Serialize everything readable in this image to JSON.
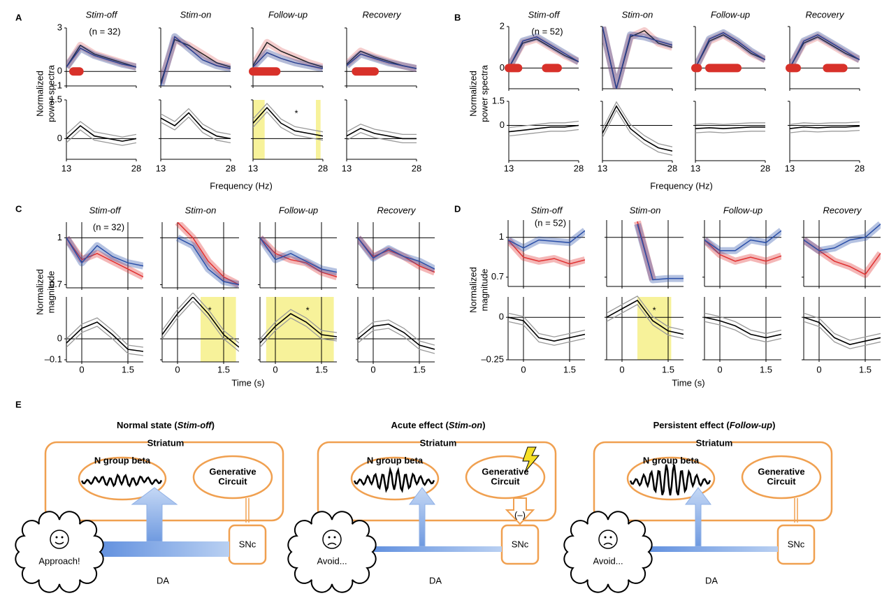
{
  "panels": [
    {
      "letter": "A",
      "columns": [
        "Stim-off",
        "Stim-on",
        "Follow-up",
        "Recovery"
      ],
      "n_label": "(n = 32)",
      "y_label": [
        "Normalized",
        "power spectra"
      ],
      "x_label": "Frequency (Hz)",
      "x": [
        13,
        16,
        19,
        22,
        25,
        28
      ],
      "xlim": [
        13,
        28
      ],
      "xticks": [
        13,
        28
      ],
      "xgrid": false,
      "top": {
        "ylim": [
          -1,
          3
        ],
        "yticks": [
          {
            "value": -1,
            "label": "−1"
          },
          0,
          3
        ],
        "ref": 0
      },
      "bottom": {
        "ylim": [
          -0.8,
          1.5
        ],
        "yticks": [
          0,
          1.5
        ],
        "ref": 0
      },
      "plots": [
        {
          "top": [
            {
              "color": "#e07070",
              "values": [
                0.3,
                1.8,
                1.2,
                0.9,
                0.6,
                0.3
              ]
            },
            {
              "color": "#2a3f8f",
              "values": [
                0.3,
                1.6,
                1.1,
                0.8,
                0.5,
                0.3
              ]
            }
          ],
          "sig": [
            [
              14.5,
              15.8
            ]
          ],
          "bottom": [
            0,
            0.5,
            0.1,
            0,
            -0.1,
            0
          ]
        },
        {
          "top": [
            {
              "color": "#e07070",
              "values": [
                -0.8,
                2.2,
                1.8,
                1.2,
                0.6,
                0.3
              ]
            },
            {
              "color": "#2a3f8f",
              "values": [
                -1,
                2.4,
                1.6,
                0.8,
                0.4,
                0.2
              ]
            }
          ],
          "sig": [],
          "bottom": [
            0.8,
            0.5,
            1.0,
            0.4,
            0.1,
            0
          ]
        },
        {
          "top": [
            {
              "color": "#e07070",
              "values": [
                0.4,
                2.0,
                1.4,
                1.0,
                0.6,
                0.3
              ]
            },
            {
              "color": "#2a3f8f",
              "values": [
                0.3,
                1.3,
                0.9,
                0.6,
                0.4,
                0.2
              ]
            }
          ],
          "sig": [
            [
              13,
              18
            ]
          ],
          "bottom": [
            0.6,
            1.2,
            0.6,
            0.3,
            0.2,
            0.1
          ],
          "highlight": [
            [
              13,
              15.5
            ],
            [
              26.5,
              27.5
            ]
          ],
          "star": "*"
        },
        {
          "top": [
            {
              "color": "#e07070",
              "values": [
                0.5,
                1.4,
                1.0,
                0.7,
                0.4,
                0.2
              ]
            },
            {
              "color": "#2a3f8f",
              "values": [
                0.4,
                1.2,
                0.9,
                0.6,
                0.4,
                0.2
              ]
            }
          ],
          "sig": [
            [
              15,
              19
            ]
          ],
          "bottom": [
            0.1,
            0.4,
            0.2,
            0.1,
            0,
            0
          ]
        }
      ]
    },
    {
      "letter": "B",
      "columns": [
        "Stim-off",
        "Stim-on",
        "Follow-up",
        "Recovery"
      ],
      "n_label": "(n = 52)",
      "y_label": [
        "Normalized",
        "power spectra"
      ],
      "x_label": "Frequency (Hz)",
      "x": [
        13,
        16,
        19,
        22,
        25,
        28
      ],
      "xlim": [
        13,
        28
      ],
      "xticks": [
        13,
        28
      ],
      "xgrid": false,
      "top": {
        "ylim": [
          -1,
          2
        ],
        "yticks": [
          0,
          2
        ],
        "ref": 0
      },
      "bottom": {
        "ylim": [
          -2.2,
          1.5
        ],
        "yticks": [
          0,
          1.5
        ],
        "ref": 0
      },
      "plots": [
        {
          "top": [
            {
              "color": "#e07070",
              "values": [
                0,
                1.2,
                1.4,
                1.0,
                0.6,
                0.3
              ]
            },
            {
              "color": "#2a3f8f",
              "values": [
                0,
                1.3,
                1.5,
                1.1,
                0.7,
                0.3
              ]
            }
          ],
          "sig": [
            [
              13,
              15
            ],
            [
              21,
              23.5
            ]
          ],
          "bottom": [
            -0.4,
            -0.3,
            -0.2,
            -0.1,
            -0.1,
            0
          ]
        },
        {
          "top": [
            {
              "color": "#e07070",
              "values": [
                2,
                -1,
                1.5,
                1.8,
                1.2,
                1.0
              ]
            },
            {
              "color": "#2a3f8f",
              "values": [
                2,
                -1,
                1.6,
                1.5,
                1.3,
                1.1
              ]
            }
          ],
          "sig": [],
          "bottom": [
            -0.5,
            1.2,
            -0.2,
            -0.9,
            -1.4,
            -1.6
          ]
        },
        {
          "top": [
            {
              "color": "#e07070",
              "values": [
                0,
                1.3,
                1.6,
                1.2,
                0.7,
                0.4
              ]
            },
            {
              "color": "#2a3f8f",
              "values": [
                0,
                1.4,
                1.7,
                1.3,
                0.8,
                0.4
              ]
            }
          ],
          "sig": [
            [
              13,
              13.5
            ],
            [
              16,
              22
            ]
          ],
          "bottom": [
            -0.2,
            -0.15,
            -0.2,
            -0.15,
            -0.1,
            -0.1
          ]
        },
        {
          "top": [
            {
              "color": "#e07070",
              "values": [
                0,
                1.2,
                1.5,
                1.1,
                0.7,
                0.4
              ]
            },
            {
              "color": "#2a3f8f",
              "values": [
                0,
                1.3,
                1.6,
                1.2,
                0.8,
                0.4
              ]
            }
          ],
          "sig": [
            [
              13,
              14.5
            ],
            [
              21,
              24.5
            ]
          ],
          "bottom": [
            -0.2,
            -0.1,
            -0.15,
            -0.1,
            -0.1,
            -0.05
          ]
        }
      ]
    },
    {
      "letter": "C",
      "columns": [
        "Stim-off",
        "Stim-on",
        "Follow-up",
        "Recovery"
      ],
      "n_label": "(n = 32)",
      "y_label": [
        "Normalized",
        "magnitude"
      ],
      "x_label": "Time (s)",
      "x": [
        -0.5,
        0,
        0.5,
        1,
        1.5,
        2
      ],
      "xlim": [
        -0.5,
        2
      ],
      "xticks": [
        0,
        1.5
      ],
      "xgrid": true,
      "top": {
        "ylim": [
          0.68,
          1.1
        ],
        "yticks": [
          0.7,
          1
        ],
        "ref": 1
      },
      "bottom": {
        "ylim": [
          -0.11,
          0.2
        ],
        "yticks": [
          {
            "value": -0.1,
            "label": "–0.1"
          },
          0
        ],
        "ref": 0
      },
      "plots": [
        {
          "top": [
            {
              "color": "#e03030",
              "values": [
                1.0,
                0.86,
                0.9,
                0.85,
                0.8,
                0.75
              ]
            },
            {
              "color": "#2a4fa8",
              "values": [
                1.0,
                0.84,
                0.95,
                0.88,
                0.84,
                0.82
              ]
            }
          ],
          "sig": [],
          "bottom": [
            -0.02,
            0.05,
            0.08,
            0.02,
            -0.05,
            -0.06
          ]
        },
        {
          "top": [
            {
              "color": "#e03030",
              "values": [
                null,
                1.1,
                1.0,
                0.85,
                0.75,
                0.7
              ]
            },
            {
              "color": "#2a4fa8",
              "values": [
                null,
                1.0,
                0.95,
                0.8,
                0.72,
                0.7
              ]
            }
          ],
          "sig": [],
          "bottom": [
            0.02,
            0.12,
            0.2,
            0.12,
            0.02,
            -0.04
          ],
          "highlight": [
            [
              0.75,
              1.9
            ]
          ],
          "star": "*"
        },
        {
          "top": [
            {
              "color": "#e03030",
              "values": [
                1.0,
                0.9,
                0.86,
                0.84,
                0.78,
                0.75
              ]
            },
            {
              "color": "#2a4fa8",
              "values": [
                1.0,
                0.86,
                0.9,
                0.85,
                0.8,
                0.78
              ]
            }
          ],
          "sig": [],
          "bottom": [
            -0.02,
            0.06,
            0.12,
            0.08,
            0.02,
            0.01
          ],
          "highlight": [
            [
              -0.3,
              1.9
            ]
          ],
          "star": "*"
        },
        {
          "top": [
            {
              "color": "#e03030",
              "values": [
                1.0,
                0.88,
                0.92,
                0.88,
                0.82,
                0.78
              ]
            },
            {
              "color": "#2a4fa8",
              "values": [
                1.0,
                0.87,
                0.93,
                0.88,
                0.85,
                0.8
              ]
            }
          ],
          "sig": [],
          "bottom": [
            0,
            0.06,
            0.07,
            0.03,
            -0.03,
            -0.05
          ]
        }
      ]
    },
    {
      "letter": "D",
      "columns": [
        "Stim-off",
        "Stim-on",
        "Follow-up",
        "Recovery"
      ],
      "n_label": "(n = 52)",
      "y_label": [
        "Normalized",
        "magnitude"
      ],
      "x_label": "Time (s)",
      "x": [
        -0.5,
        0,
        0.5,
        1,
        1.5,
        2
      ],
      "xlim": [
        -0.5,
        2
      ],
      "xticks": [
        0,
        1.5
      ],
      "xgrid": true,
      "top": {
        "ylim": [
          0.63,
          1.13
        ],
        "yticks": [
          0.7,
          1
        ],
        "ref": 1
      },
      "bottom": {
        "ylim": [
          -0.25,
          0.12
        ],
        "yticks": [
          {
            "value": -0.25,
            "label": "–0.25"
          },
          0
        ],
        "ref": 0
      },
      "plots": [
        {
          "top": [
            {
              "color": "#e03030",
              "values": [
                0.98,
                0.85,
                0.82,
                0.84,
                0.8,
                0.83
              ]
            },
            {
              "color": "#2a4fa8",
              "values": [
                0.98,
                0.92,
                0.98,
                0.97,
                0.96,
                1.05
              ]
            }
          ],
          "sig": [],
          "bottom": [
            0,
            -0.02,
            -0.12,
            -0.14,
            -0.12,
            -0.1
          ]
        },
        {
          "top": [
            {
              "color": "#e03030",
              "values": [
                null,
                null,
                1.12,
                0.68,
                null,
                null
              ]
            },
            {
              "color": "#2a4fa8",
              "values": [
                null,
                null,
                1.1,
                0.68,
                0.69,
                0.69
              ]
            }
          ],
          "sig": [],
          "bottom": [
            0,
            0.05,
            0.1,
            -0.02,
            -0.08,
            -0.1
          ],
          "highlight": [
            [
              0.5,
              1.6
            ]
          ],
          "star": "*"
        },
        {
          "top": [
            {
              "color": "#e03030",
              "values": [
                0.98,
                0.87,
                0.82,
                0.85,
                0.82,
                0.86
              ]
            },
            {
              "color": "#2a4fa8",
              "values": [
                0.98,
                0.9,
                0.9,
                0.98,
                0.96,
                1.05
              ]
            }
          ],
          "sig": [],
          "bottom": [
            0,
            -0.02,
            -0.05,
            -0.1,
            -0.12,
            -0.1
          ]
        },
        {
          "top": [
            {
              "color": "#e03030",
              "values": [
                0.98,
                0.9,
                0.82,
                0.78,
                0.72,
                0.88
              ]
            },
            {
              "color": "#2a4fa8",
              "values": [
                0.98,
                0.9,
                0.92,
                0.98,
                1.0,
                1.1
              ]
            }
          ],
          "sig": [],
          "bottom": [
            0,
            -0.03,
            -0.12,
            -0.16,
            -0.14,
            -0.12
          ]
        }
      ]
    }
  ],
  "diagram": {
    "letter": "E",
    "states": [
      {
        "title_parts": [
          "Normal state (",
          "Stim-off",
          ")"
        ],
        "region": "Striatum",
        "beta": "N group beta",
        "circuit": [
          "Generative",
          "Circuit"
        ],
        "source": "SNc",
        "signal": "DA",
        "mood": "Approach!"
      },
      {
        "title_parts": [
          "Acute effect (",
          "Stim-on",
          ")"
        ],
        "region": "Striatum",
        "beta": "N group beta",
        "circuit": [
          "Generative",
          "Circuit"
        ],
        "source": "SNc",
        "signal": "DA",
        "mood": "Avoid...",
        "inhibit": "(–)"
      },
      {
        "title_parts": [
          "Persistent effect (",
          "Follow-up",
          ")"
        ],
        "region": "Striatum",
        "beta": "N group beta",
        "circuit": [
          "Generative",
          "Circuit"
        ],
        "source": "SNc",
        "signal": "DA",
        "mood": "Avoid..."
      }
    ]
  }
}
